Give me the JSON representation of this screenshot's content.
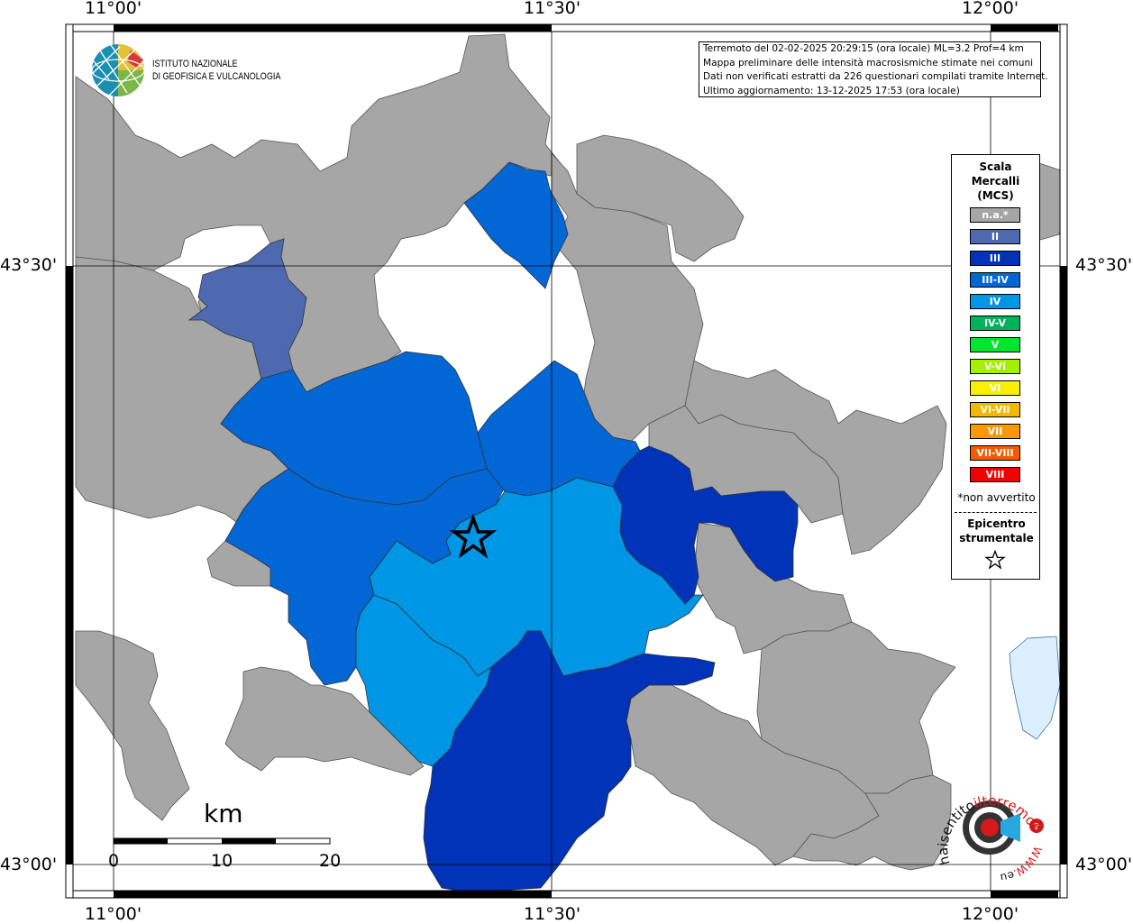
{
  "map": {
    "ticks": {
      "top": [
        "11°00'",
        "11°30'",
        "12°00'"
      ],
      "bottom": [
        "11°00'",
        "11°30'",
        "12°00'"
      ],
      "left": [
        "43°30'",
        "43°00'"
      ],
      "right": [
        "43°30'",
        "43°00'"
      ]
    }
  },
  "info": {
    "line1": "Terremoto del 02-02-2025 20:29:15 (ora locale) ML=3.2 Prof=4 km",
    "line2": "Mappa preliminare delle intensità macrosismiche stimate nei comuni",
    "line3": "Dati non verificati estratti da 226 questionari compilati tramite Internet.",
    "line4": "Ultimo aggiornamento: 13-12-2025 17:53 (ora locale)"
  },
  "logo": {
    "line1": "ISTITUTO NAZIONALE",
    "line2": "DI GEOFISICA E VULCANOLOGIA"
  },
  "legend": {
    "title1": "Scala",
    "title2": "Mercalli",
    "title3": "(MCS)",
    "items": [
      {
        "label": "n.a.*",
        "color": "#a6a6a6"
      },
      {
        "label": "II",
        "color": "#4f69b0"
      },
      {
        "label": "III",
        "color": "#0033b8"
      },
      {
        "label": "III-IV",
        "color": "#0266d4"
      },
      {
        "label": "IV",
        "color": "#0096e6"
      },
      {
        "label": "IV-V",
        "color": "#00b25c"
      },
      {
        "label": "V",
        "color": "#00e52d"
      },
      {
        "label": "V-VI",
        "color": "#a5f000"
      },
      {
        "label": "VI",
        "color": "#f7f000"
      },
      {
        "label": "VI-VII",
        "color": "#f5b800"
      },
      {
        "label": "VII",
        "color": "#f59a00"
      },
      {
        "label": "VII-VIII",
        "color": "#f55a00"
      },
      {
        "label": "VIII",
        "color": "#f50000"
      }
    ],
    "note": "*non avvertito",
    "epi1": "Epicentro",
    "epi2": "strumentale"
  },
  "scale": {
    "unit": "km",
    "values": [
      "0",
      "10",
      "20"
    ]
  },
  "sentito": {
    "text1": "haisentito",
    "text2": "ilterremoto.it",
    "text3": "WWW.",
    "text4": "eu"
  },
  "colors": {
    "na": "#a6a6a6",
    "II": "#4f69b0",
    "III": "#0033b8",
    "III-IV": "#0266d4",
    "IV": "#0096e6",
    "water": "#dcefff"
  }
}
